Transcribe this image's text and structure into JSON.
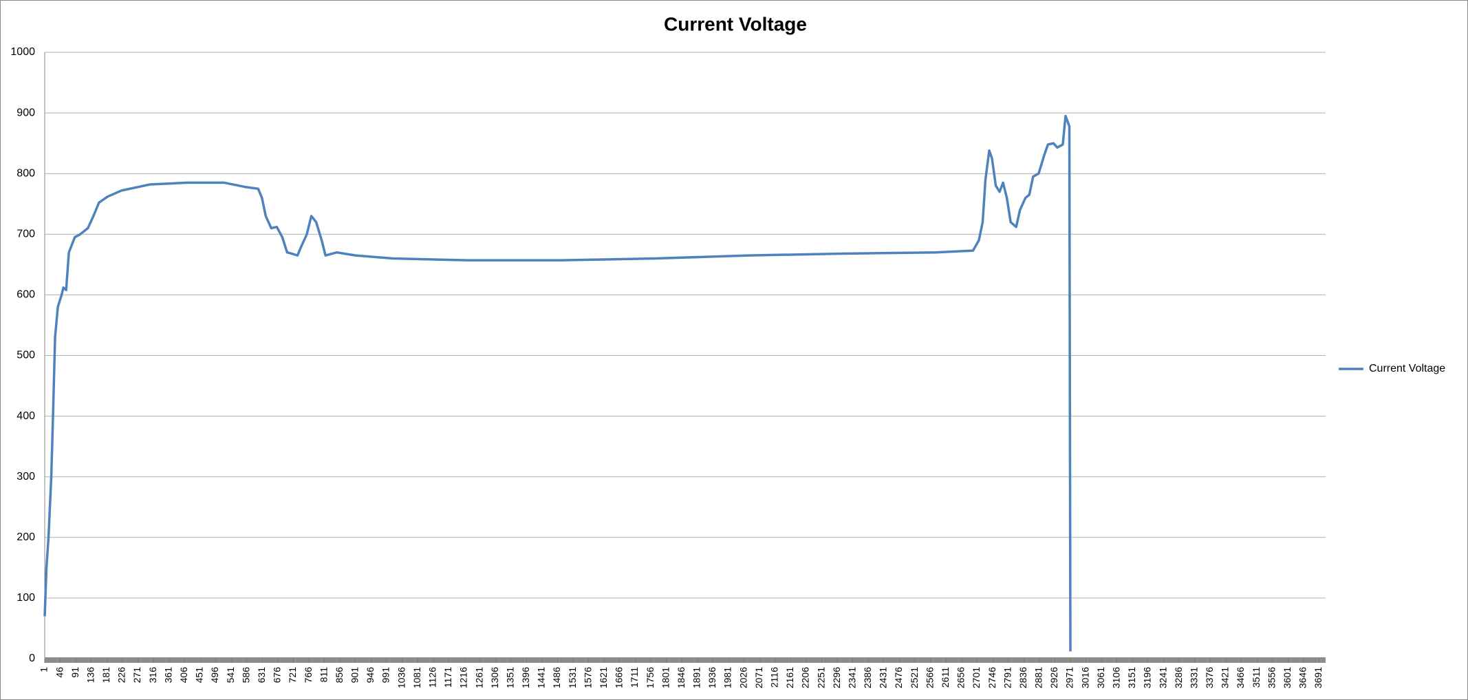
{
  "chart_data": {
    "type": "line",
    "title": "Current Voltage",
    "x": [
      1,
      6,
      12,
      20,
      25,
      31,
      39,
      50,
      55,
      63,
      71,
      88,
      104,
      126,
      142,
      158,
      183,
      223,
      305,
      413,
      521,
      581,
      619,
      630,
      641,
      657,
      673,
      689,
      703,
      716,
      733,
      744,
      760,
      773,
      787,
      803,
      814,
      847,
      901,
      1009,
      1226,
      1497,
      1768,
      2039,
      2310,
      2581,
      2689,
      2706,
      2717,
      2725,
      2736,
      2744,
      2755,
      2766,
      2776,
      2787,
      2798,
      2814,
      2825,
      2841,
      2852,
      2863,
      2879,
      2895,
      2906,
      2922,
      2933,
      2949,
      2957,
      2968,
      2971
    ],
    "series": [
      {
        "name": "Current Voltage",
        "color": "#4f81bd",
        "values": [
          70,
          150,
          200,
          300,
          400,
          530,
          580,
          600,
          612,
          608,
          670,
          695,
          700,
          710,
          730,
          752,
          762,
          772,
          782,
          785,
          785,
          778,
          775,
          760,
          730,
          710,
          712,
          695,
          670,
          668,
          665,
          680,
          700,
          730,
          720,
          690,
          665,
          670,
          665,
          660,
          657,
          657,
          660,
          665,
          668,
          670,
          673,
          690,
          720,
          790,
          838,
          825,
          780,
          770,
          785,
          760,
          720,
          712,
          740,
          760,
          765,
          795,
          800,
          830,
          848,
          850,
          843,
          848,
          895,
          878,
          12
        ]
      }
    ],
    "xlim": [
      1,
      3710
    ],
    "xticks": [
      1,
      46,
      91,
      136,
      181,
      226,
      271,
      316,
      361,
      406,
      451,
      496,
      541,
      586,
      631,
      676,
      721,
      766,
      811,
      856,
      901,
      946,
      991,
      1036,
      1081,
      1126,
      1171,
      1216,
      1261,
      1306,
      1351,
      1396,
      1441,
      1486,
      1531,
      1576,
      1621,
      1666,
      1711,
      1756,
      1801,
      1846,
      1891,
      1936,
      1981,
      2026,
      2071,
      2116,
      2161,
      2206,
      2251,
      2296,
      2341,
      2386,
      2431,
      2476,
      2521,
      2566,
      2611,
      2656,
      2701,
      2746,
      2791,
      2836,
      2881,
      2926,
      2971,
      3016,
      3061,
      3106,
      3151,
      3196,
      3241,
      3286,
      3331,
      3376,
      3421,
      3466,
      3511,
      3556,
      3601,
      3646,
      3691
    ],
    "ylim": [
      0,
      1000
    ],
    "yticks": [
      0,
      100,
      200,
      300,
      400,
      500,
      600,
      700,
      800,
      900,
      1000
    ],
    "grid": true,
    "legend": "right"
  }
}
